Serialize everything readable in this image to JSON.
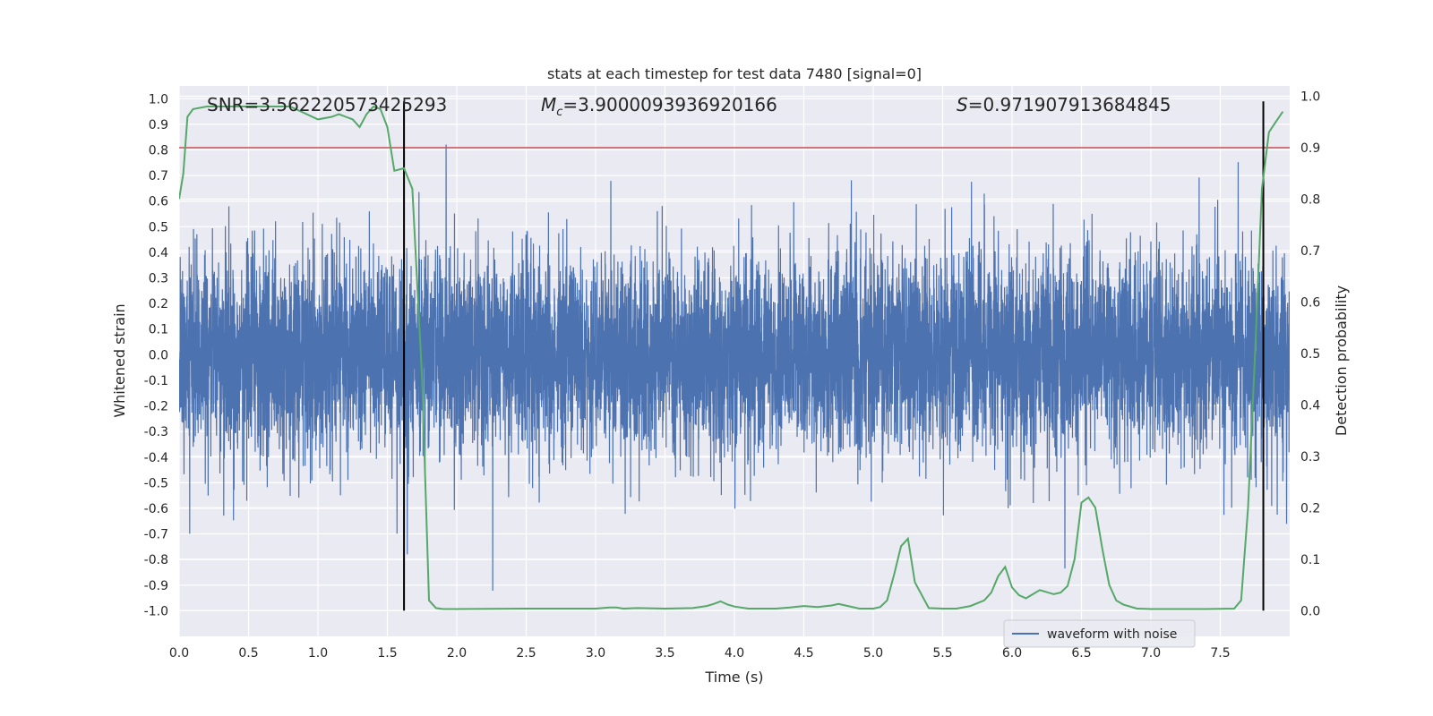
{
  "chart_data": {
    "type": "line",
    "title": "stats at each timestep for test data 7480 [signal=0]",
    "xlabel": "Time (s)",
    "ylabel_left": "Whitened strain",
    "ylabel_right": "Detection probability",
    "xlim": [
      0.0,
      8.0
    ],
    "ylim_left": [
      -1.1,
      1.05
    ],
    "ylim_right": [
      -0.05,
      1.02
    ],
    "x_ticks": [
      "0.0",
      "0.5",
      "1.0",
      "1.5",
      "2.0",
      "2.5",
      "3.0",
      "3.5",
      "4.0",
      "4.5",
      "5.0",
      "5.5",
      "6.0",
      "6.5",
      "7.0",
      "7.5"
    ],
    "x_tick_values": [
      0.0,
      0.5,
      1.0,
      1.5,
      2.0,
      2.5,
      3.0,
      3.5,
      4.0,
      4.5,
      5.0,
      5.5,
      6.0,
      6.5,
      7.0,
      7.5
    ],
    "y_left_ticks": [
      "1.0",
      "0.9",
      "0.8",
      "0.7",
      "0.6",
      "0.5",
      "0.4",
      "0.3",
      "0.2",
      "0.1",
      "0.0",
      "-0.1",
      "-0.2",
      "-0.3",
      "-0.4",
      "-0.5",
      "-0.6",
      "-0.7",
      "-0.8",
      "-0.9",
      "-1.0"
    ],
    "y_left_tick_values": [
      1.0,
      0.9,
      0.8,
      0.7,
      0.6,
      0.5,
      0.4,
      0.3,
      0.2,
      0.1,
      0.0,
      -0.1,
      -0.2,
      -0.3,
      -0.4,
      -0.5,
      -0.6,
      -0.7,
      -0.8,
      -0.9,
      -1.0
    ],
    "y_right_ticks": [
      "1.0",
      "0.9",
      "0.8",
      "0.7",
      "0.6",
      "0.5",
      "0.4",
      "0.3",
      "0.2",
      "0.1",
      "0.0"
    ],
    "y_right_tick_values": [
      1.0,
      0.9,
      0.8,
      0.7,
      0.6,
      0.5,
      0.4,
      0.3,
      0.2,
      0.1,
      0.0
    ],
    "annotations": {
      "snr": "SNR=3.562220573425293",
      "mc_symbol": "M",
      "mc_sub": "c",
      "mc_value": "=3.9000093936920166",
      "s_symbol": "S",
      "s_value": "=0.971907913684845"
    },
    "threshold": {
      "value": 0.9,
      "axis": "right",
      "color": "#c44e52"
    },
    "vertical_lines": [
      {
        "x": 1.62,
        "y_from": 0.0,
        "y_to": 0.99,
        "color": "#000000"
      },
      {
        "x": 7.81,
        "y_from": 0.0,
        "y_to": 0.99,
        "color": "#000000"
      }
    ],
    "series": [
      {
        "name": "waveform with noise",
        "axis": "left",
        "color": "#4c72b0",
        "kind": "noise",
        "x_range": [
          0.0,
          8.0
        ],
        "n_samples": 8192,
        "amplitude_typical": 0.45,
        "amplitude_peak": 0.99
      },
      {
        "name": "detection probability",
        "axis": "right",
        "color": "#55a868",
        "x": [
          0.0,
          0.03,
          0.06,
          0.1,
          0.2,
          0.4,
          0.6,
          0.8,
          1.0,
          1.1,
          1.15,
          1.2,
          1.25,
          1.3,
          1.35,
          1.4,
          1.45,
          1.5,
          1.55,
          1.62,
          1.68,
          1.75,
          1.8,
          1.85,
          1.9,
          2.0,
          2.5,
          3.0,
          3.05,
          3.1,
          3.15,
          3.2,
          3.3,
          3.5,
          3.7,
          3.8,
          3.85,
          3.9,
          3.95,
          4.0,
          4.1,
          4.2,
          4.3,
          4.4,
          4.5,
          4.6,
          4.7,
          4.75,
          4.8,
          4.9,
          5.0,
          5.05,
          5.1,
          5.15,
          5.2,
          5.25,
          5.3,
          5.4,
          5.5,
          5.6,
          5.7,
          5.8,
          5.85,
          5.9,
          5.95,
          6.0,
          6.05,
          6.1,
          6.15,
          6.2,
          6.3,
          6.35,
          6.4,
          6.45,
          6.5,
          6.55,
          6.6,
          6.65,
          6.7,
          6.75,
          6.8,
          6.9,
          7.0,
          7.2,
          7.4,
          7.6,
          7.65,
          7.7,
          7.75,
          7.8,
          7.85,
          7.9,
          7.95
        ],
        "values": [
          0.8,
          0.85,
          0.96,
          0.975,
          0.98,
          0.98,
          0.98,
          0.98,
          0.955,
          0.96,
          0.965,
          0.96,
          0.955,
          0.94,
          0.965,
          0.98,
          0.975,
          0.94,
          0.855,
          0.86,
          0.82,
          0.45,
          0.02,
          0.005,
          0.003,
          0.003,
          0.004,
          0.004,
          0.005,
          0.006,
          0.006,
          0.004,
          0.005,
          0.004,
          0.005,
          0.009,
          0.013,
          0.018,
          0.012,
          0.008,
          0.004,
          0.004,
          0.004,
          0.006,
          0.009,
          0.007,
          0.01,
          0.013,
          0.01,
          0.004,
          0.004,
          0.007,
          0.02,
          0.07,
          0.125,
          0.14,
          0.055,
          0.005,
          0.004,
          0.004,
          0.009,
          0.02,
          0.035,
          0.067,
          0.085,
          0.045,
          0.03,
          0.024,
          0.032,
          0.04,
          0.032,
          0.035,
          0.048,
          0.1,
          0.21,
          0.22,
          0.2,
          0.12,
          0.05,
          0.02,
          0.012,
          0.004,
          0.003,
          0.003,
          0.003,
          0.004,
          0.02,
          0.2,
          0.5,
          0.82,
          0.93,
          0.95,
          0.97
        ]
      }
    ],
    "legend": {
      "position": "lower-right",
      "entries": [
        {
          "label": "waveform with noise",
          "color": "#4c72b0"
        }
      ]
    },
    "colors": {
      "plot_background": "#eaeaf2",
      "grid": "#ffffff",
      "waveform": "#4c72b0",
      "probability": "#55a868",
      "threshold": "#c44e52",
      "vline": "#000000"
    }
  }
}
